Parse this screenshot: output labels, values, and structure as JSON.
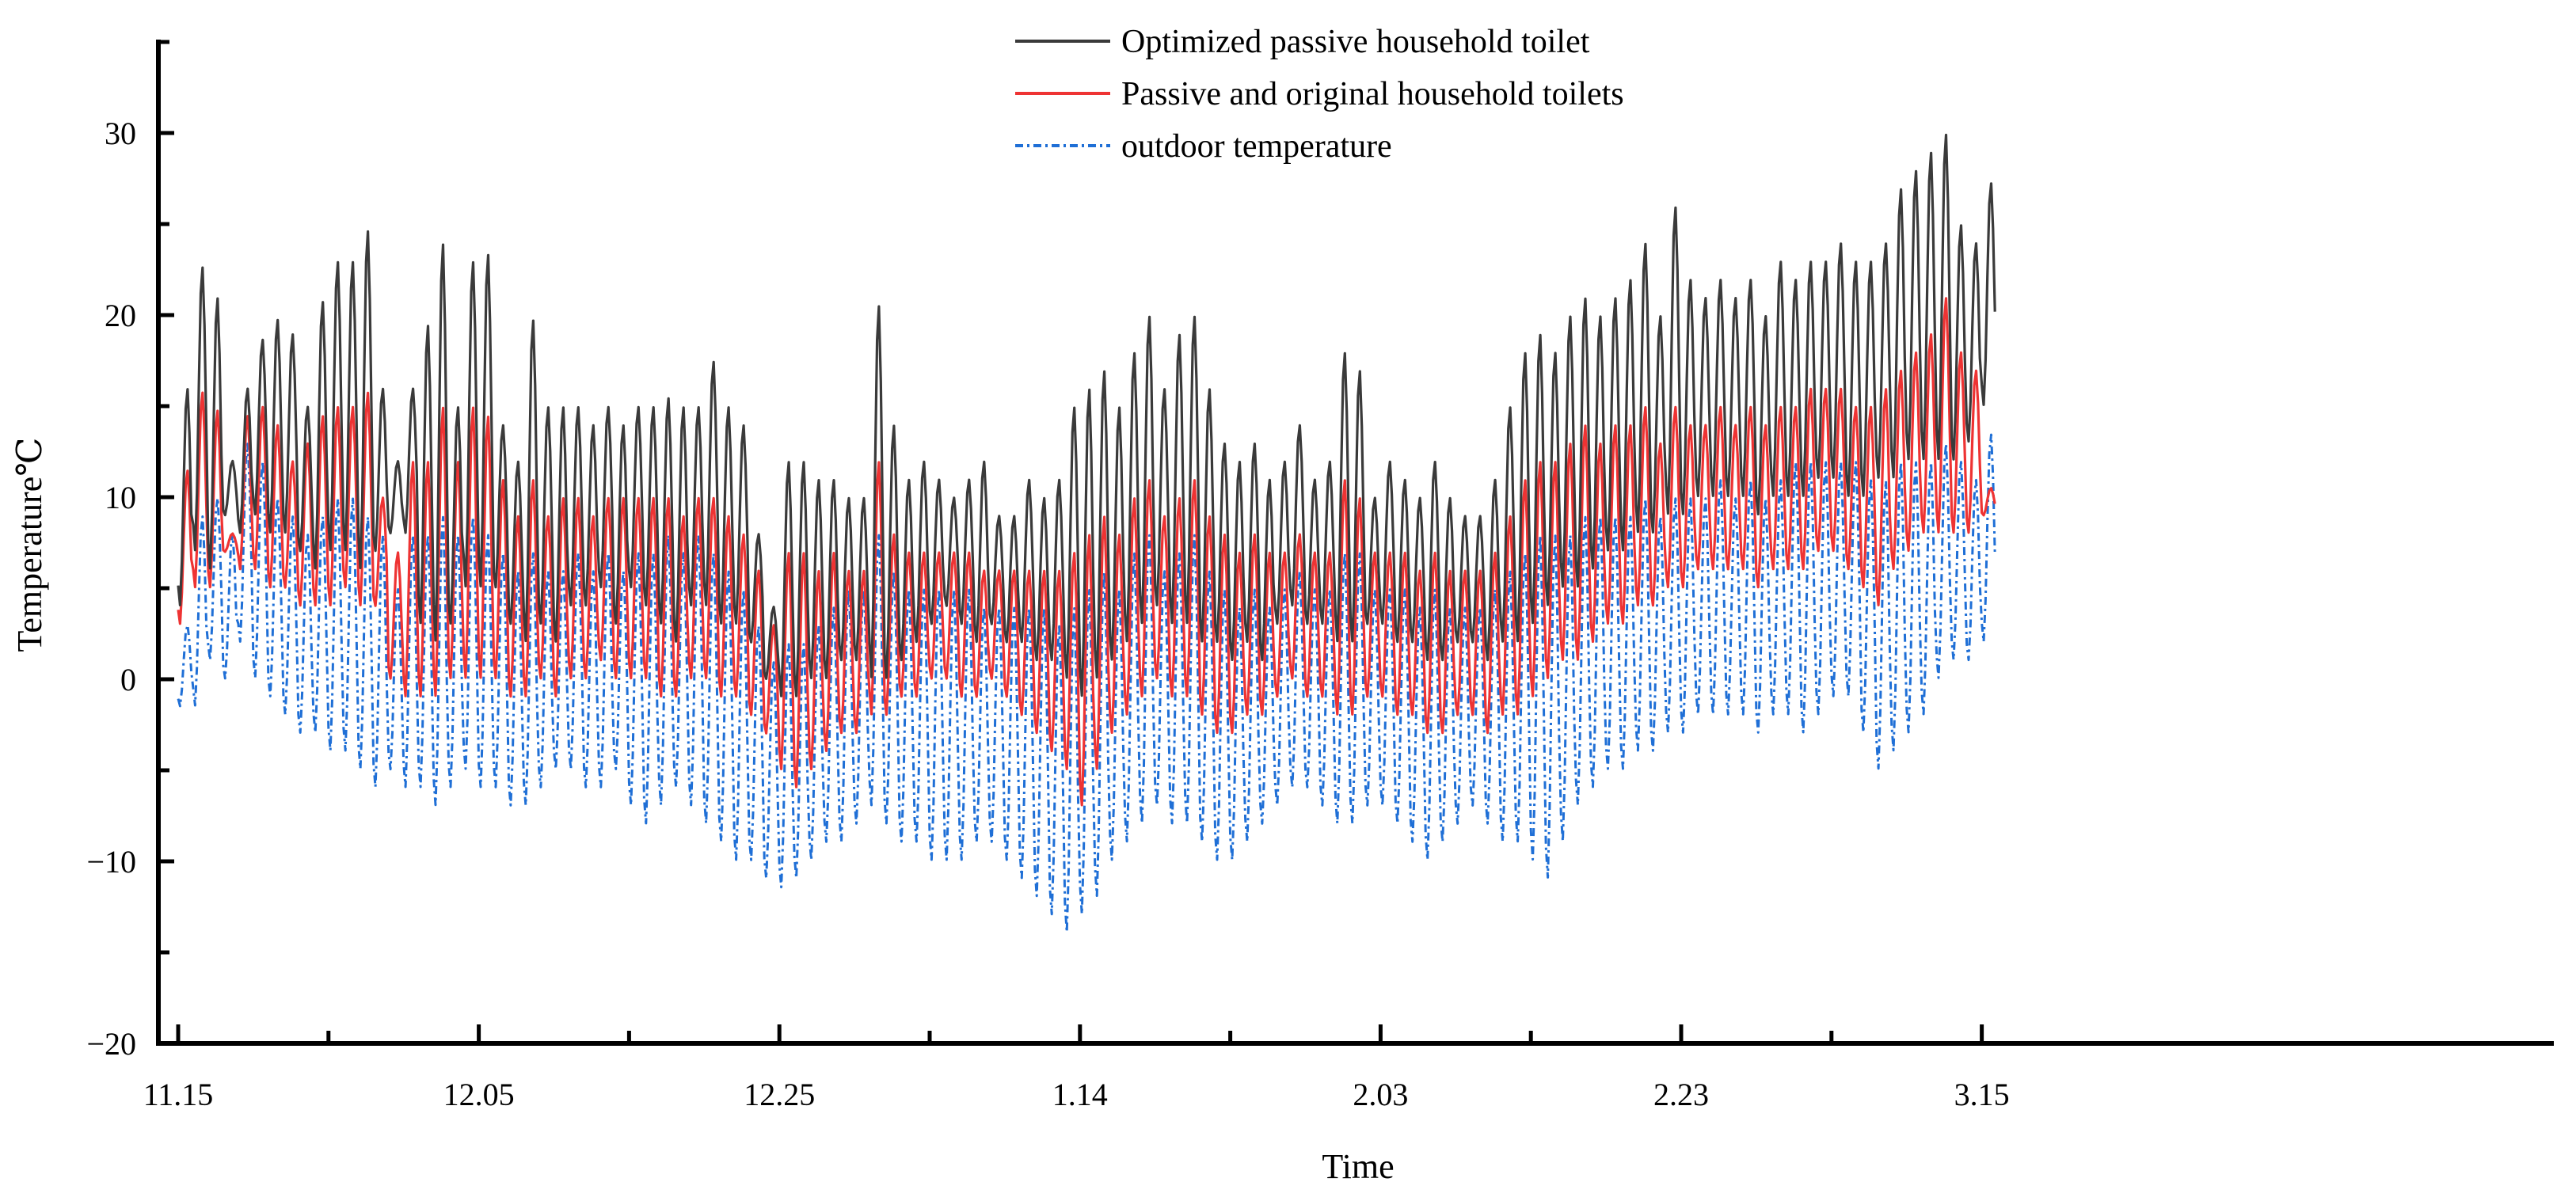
{
  "chart_data": {
    "type": "line",
    "xlabel": "Time",
    "ylabel": "Temperature℃",
    "ylim": [
      -20,
      35
    ],
    "yticks": [
      -20,
      -10,
      0,
      10,
      20,
      30
    ],
    "xlim": [
      -0.3,
      127
    ],
    "xticks": [
      {
        "label": "11.15",
        "day": 0
      },
      {
        "label": "12.05",
        "day": 20
      },
      {
        "label": "12.25",
        "day": 40
      },
      {
        "label": "1.14",
        "day": 60
      },
      {
        "label": "2.03",
        "day": 80
      },
      {
        "label": "2.23",
        "day": 100
      },
      {
        "label": "3.15",
        "day": 120
      }
    ],
    "x_minor_tick_step_days": 10,
    "grid": false,
    "legend": "top-center",
    "series": [
      {
        "name": "Optimized passive household toilet",
        "color": "#3a3a3a",
        "style": "solid",
        "daily_min": [
          4,
          7,
          6,
          9,
          8,
          9,
          8,
          8,
          7,
          6,
          7,
          7,
          6,
          7,
          8,
          8,
          3,
          2,
          3,
          5,
          5,
          5,
          3,
          2,
          3,
          2,
          4,
          4,
          5,
          3,
          5,
          4,
          3,
          2,
          4,
          4,
          3,
          3,
          2,
          0,
          -1,
          -1,
          0,
          0,
          1,
          1,
          0,
          0,
          1,
          2,
          3,
          4,
          3,
          2,
          3,
          2,
          2,
          1,
          1,
          0,
          -1,
          0,
          1,
          2,
          3,
          4,
          3,
          3,
          2,
          2,
          1,
          2,
          1,
          3,
          4,
          3,
          3,
          2,
          2,
          3,
          3,
          2,
          2,
          1,
          1,
          2,
          2,
          1,
          2,
          2,
          3,
          4,
          5,
          5,
          6,
          7,
          7,
          8,
          8,
          9,
          9,
          10,
          10,
          10,
          10,
          9,
          10,
          10,
          10,
          11,
          11,
          10,
          10,
          11,
          11,
          12,
          12,
          12,
          12,
          13,
          15
        ],
        "daily_max": [
          16,
          22.7,
          21,
          12,
          16,
          18.7,
          19.8,
          19,
          15,
          20.8,
          23,
          23,
          24.7,
          16,
          12,
          16,
          19.5,
          24,
          15,
          23,
          23.4,
          14,
          12,
          19.8,
          15,
          15,
          15,
          14,
          15,
          14,
          15,
          15,
          15.5,
          15,
          15,
          17.5,
          15,
          14,
          8,
          4,
          12,
          12,
          11,
          11,
          10,
          10,
          20.6,
          14,
          11,
          12,
          11,
          10,
          11,
          12,
          9,
          9,
          11,
          10,
          11,
          15,
          16,
          17,
          15,
          18,
          20,
          16,
          19,
          20,
          16,
          13,
          12,
          13,
          11,
          12,
          14,
          11,
          12,
          18,
          17,
          10,
          12,
          11,
          10,
          12,
          10,
          9,
          9,
          11,
          15,
          18,
          19,
          18,
          20,
          21,
          20,
          21,
          22,
          24,
          20,
          26,
          22,
          21,
          22,
          21,
          22,
          20,
          23,
          22,
          23,
          23,
          24,
          23,
          23,
          24,
          27,
          28,
          29,
          30,
          25,
          24,
          27.3
        ]
      },
      {
        "name": "Passive and original household toilets",
        "color": "#ee3333",
        "style": "solid",
        "daily_min": [
          3,
          5,
          5,
          7,
          6,
          6,
          5,
          5,
          4,
          4,
          4,
          5,
          4,
          4,
          0,
          -1,
          -1,
          -1,
          0,
          0,
          0,
          0,
          -1,
          -1,
          0,
          -1,
          0,
          0,
          1,
          0,
          0,
          0,
          -1,
          -1,
          0,
          0,
          -1,
          -1,
          -2,
          -3,
          -5,
          -6,
          -5,
          -4,
          -3,
          -3,
          -2,
          -2,
          -1,
          -1,
          0,
          0,
          -1,
          -1,
          0,
          -1,
          -2,
          -3,
          -4,
          -5,
          -7,
          -5,
          -3,
          -2,
          -1,
          0,
          -1,
          -1,
          -2,
          -3,
          -3,
          -2,
          -2,
          -1,
          0,
          -1,
          -1,
          -2,
          -2,
          -1,
          -1,
          -2,
          -2,
          -3,
          -3,
          -2,
          -2,
          -3,
          -2,
          -2,
          -1,
          0,
          1,
          1,
          2,
          3,
          3,
          4,
          4,
          5,
          5,
          6,
          6,
          6,
          6,
          5,
          6,
          6,
          6,
          7,
          7,
          6,
          5,
          4,
          6,
          7,
          8,
          8,
          8,
          8,
          9
        ],
        "daily_max": [
          11.5,
          15.8,
          14.8,
          8,
          14.5,
          15,
          14,
          12,
          13,
          14.5,
          15,
          15,
          15.8,
          10,
          7,
          12,
          12,
          15,
          12,
          15,
          14.5,
          11,
          9,
          11,
          9,
          10,
          10,
          9,
          10,
          10,
          10,
          10,
          10,
          9,
          10,
          10,
          9,
          8,
          6,
          3,
          7,
          7,
          6,
          7,
          6,
          6,
          12,
          8,
          7,
          7,
          7,
          7,
          7,
          6,
          6,
          6,
          6,
          6,
          6,
          7,
          8,
          9,
          8,
          10,
          11,
          9,
          10,
          11,
          9,
          8,
          7,
          8,
          7,
          7,
          8,
          7,
          7,
          11,
          10,
          7,
          7,
          7,
          6,
          7,
          6,
          6,
          6,
          7,
          9,
          11,
          12,
          12,
          13,
          14,
          13,
          14,
          14,
          15,
          13,
          15,
          14,
          14,
          15,
          14,
          15,
          14,
          15,
          15,
          16,
          16,
          16,
          15,
          15,
          16,
          17,
          18,
          19,
          21,
          18,
          17,
          10.5
        ]
      },
      {
        "name": "outdoor temperature",
        "color": "#1f6fd6",
        "style": "dashdot",
        "daily_min": [
          -1.5,
          -1.5,
          1,
          0,
          2,
          0,
          -1,
          -2,
          -3,
          -3,
          -4,
          -4,
          -5,
          -6,
          -5,
          -6,
          -6,
          -7,
          -6,
          -5,
          -6,
          -6,
          -7,
          -7,
          -6,
          -5,
          -5,
          -6,
          -6,
          -5,
          -7,
          -8,
          -7,
          -6,
          -7,
          -8,
          -9,
          -10,
          -10,
          -11,
          -11.5,
          -11,
          -10,
          -9,
          -9,
          -8,
          -7,
          -8,
          -9,
          -9,
          -10,
          -10,
          -10,
          -9,
          -9,
          -10,
          -11,
          -12,
          -13,
          -14,
          -13,
          -12,
          -10,
          -9,
          -8,
          -7,
          -8,
          -8,
          -9,
          -10,
          -10,
          -9,
          -8,
          -7,
          -6,
          -6,
          -7,
          -8,
          -8,
          -7,
          -7,
          -8,
          -9,
          -10,
          -9,
          -8,
          -7,
          -8,
          -9,
          -9,
          -10,
          -11,
          -9,
          -7,
          -6,
          -5,
          -5,
          -4,
          -4,
          -3,
          -3,
          -2,
          -2,
          -2,
          -2,
          -3,
          -2,
          -2,
          -3,
          -2,
          -1,
          -1,
          -3,
          -5,
          -4,
          -3,
          -2,
          0,
          1,
          1,
          2
        ],
        "daily_max": [
          3,
          9,
          10,
          8,
          13,
          12,
          10,
          9,
          8,
          9,
          10,
          10,
          9,
          8,
          5,
          8,
          8,
          9,
          8,
          9,
          8,
          7,
          6,
          7,
          6,
          6,
          7,
          6,
          7,
          6,
          7,
          7,
          8,
          7,
          8,
          7,
          6,
          5,
          3,
          1,
          2,
          2,
          3,
          4,
          5,
          5,
          8,
          6,
          5,
          5,
          5,
          5,
          5,
          4,
          4,
          4,
          4,
          4,
          3,
          4,
          5,
          6,
          5,
          7,
          8,
          6,
          7,
          8,
          6,
          5,
          4,
          5,
          4,
          5,
          6,
          5,
          5,
          7,
          7,
          5,
          5,
          5,
          4,
          5,
          4,
          4,
          4,
          5,
          6,
          7,
          8,
          8,
          8,
          9,
          9,
          9,
          9,
          10,
          9,
          10,
          10,
          10,
          11,
          10,
          11,
          10,
          11,
          12,
          12,
          12,
          12,
          12,
          11,
          11,
          12,
          12,
          12,
          13,
          12,
          11,
          13.5
        ]
      }
    ]
  }
}
